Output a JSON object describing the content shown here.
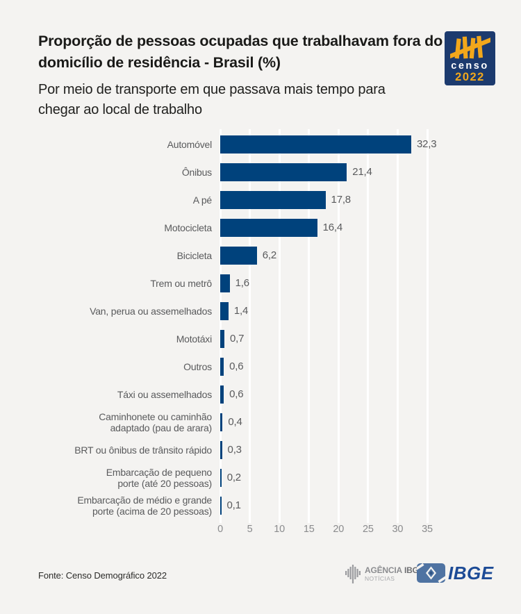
{
  "header": {
    "title": "Proporção de pessoas ocupadas que trabalhavam fora do domicílio de residência - Brasil (%)",
    "subtitle": "Por meio de transporte em que passava mais tempo para chegar ao local de trabalho"
  },
  "censo_logo": {
    "name": "censo",
    "year": "2022",
    "bg_color": "#1c3a6e",
    "accent_color": "#f2a71b"
  },
  "chart_data": {
    "type": "bar",
    "orientation": "horizontal",
    "title": "Proporção de pessoas ocupadas que trabalhavam fora do domicílio de residência - Brasil (%)",
    "subtitle": "Por meio de transporte em que passava mais tempo para chegar ao local de trabalho",
    "categories": [
      "Automóvel",
      "Ônibus",
      "A pé",
      "Motocicleta",
      "Bicicleta",
      "Trem ou metrô",
      "Van, perua ou assemelhados",
      "Mototáxi",
      "Outros",
      "Táxi ou assemelhados",
      "Caminhonete ou caminhão\nadaptado (pau de arara)",
      "BRT ou ônibus de trânsito rápido",
      "Embarcação de pequeno\nporte (até 20 pessoas)",
      "Embarcação de médio e grande\nporte (acima de 20 pessoas)"
    ],
    "values": [
      32.3,
      21.4,
      17.8,
      16.4,
      6.2,
      1.6,
      1.4,
      0.7,
      0.6,
      0.6,
      0.4,
      0.3,
      0.2,
      0.1
    ],
    "value_labels": [
      "32,3",
      "21,4",
      "17,8",
      "16,4",
      "6,2",
      "1,6",
      "1,4",
      "0,7",
      "0,6",
      "0,6",
      "0,4",
      "0,3",
      "0,2",
      "0,1"
    ],
    "xlim": [
      0,
      35
    ],
    "x_ticks": [
      0,
      5,
      10,
      15,
      20,
      25,
      30,
      35
    ],
    "bar_color": "#00427c",
    "grid": true,
    "gridline_color": "#ffffff",
    "legend": null
  },
  "footer": {
    "source": "Fonte: Censo Demográfico 2022",
    "agencia_word1": "AGÊNCIA",
    "agencia_word2": "IBGE",
    "agencia_line2": "NOTÍCIAS",
    "ibge_text": "IBGE"
  }
}
